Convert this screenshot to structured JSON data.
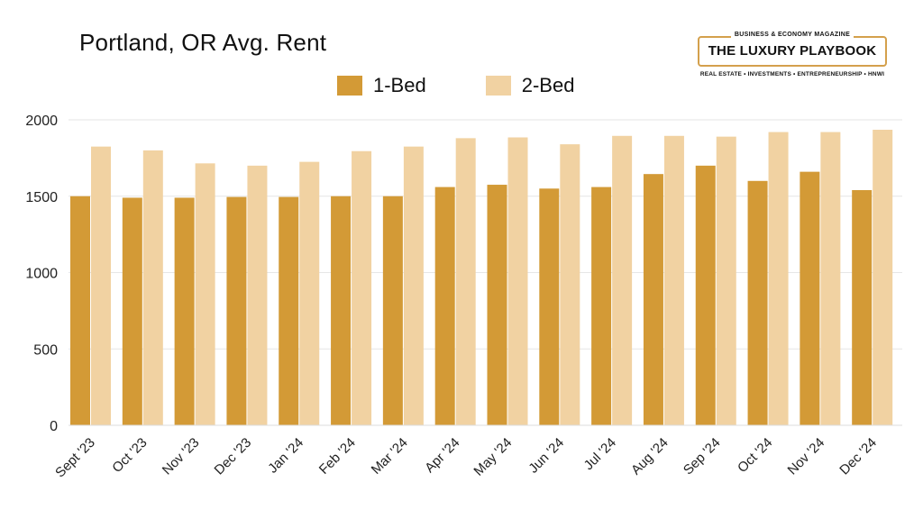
{
  "logo": {
    "top": "BUSINESS & ECONOMY MAGAZINE",
    "name": "THE LUXURY PLAYBOOK",
    "bottom": "REAL ESTATE • INVESTMENTS • ENTREPRENEURSHIP • HNWI"
  },
  "chart_data": {
    "type": "bar",
    "title": "Portland, OR Avg. Rent",
    "xlabel": "",
    "ylabel": "",
    "ylim": [
      0,
      2000
    ],
    "yticks": [
      0,
      500,
      1000,
      1500,
      2000
    ],
    "grid": true,
    "legend_position": "top-center",
    "categories": [
      "Sept '23",
      "Oct '23",
      "Nov '23",
      "Dec '23",
      "Jan '24",
      "Feb '24",
      "Mar '24",
      "Apr '24",
      "May '24",
      "Jun '24",
      "Jul '24",
      "Aug '24",
      "Sep '24",
      "Oct '24",
      "Nov '24",
      "Dec '24"
    ],
    "series": [
      {
        "name": "1-Bed",
        "color": "#d39a36",
        "values": [
          1500,
          1490,
          1490,
          1495,
          1495,
          1500,
          1500,
          1560,
          1575,
          1550,
          1560,
          1645,
          1700,
          1600,
          1660,
          1540
        ]
      },
      {
        "name": "2-Bed",
        "color": "#f1d2a2",
        "values": [
          1825,
          1800,
          1715,
          1700,
          1725,
          1795,
          1825,
          1880,
          1885,
          1840,
          1895,
          1895,
          1890,
          1920,
          1920,
          1935
        ]
      }
    ]
  }
}
